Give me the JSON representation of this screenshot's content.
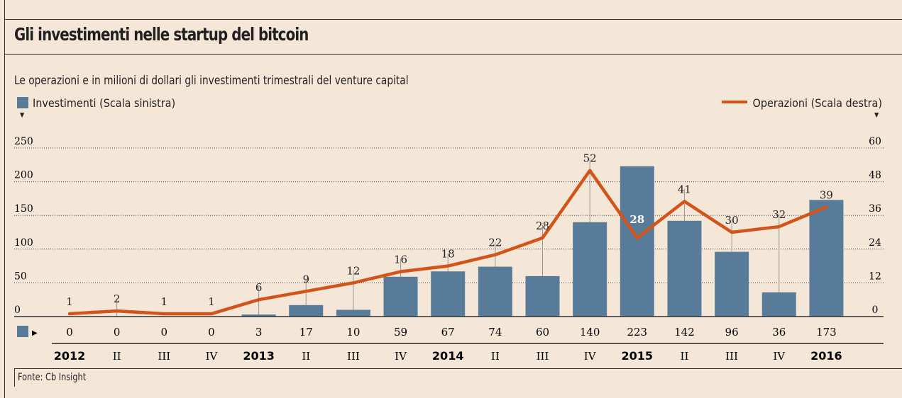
{
  "title": "Gli investimenti nelle startup del bitcoin",
  "subtitle": "Le operazioni e in milioni di dollari gli investimenti trimestrali del venture capital",
  "source": "Fonte: Cb Insight",
  "colors": {
    "bar": "#587b99",
    "line": "#d2541a",
    "background": "#f4e7d7"
  },
  "chart_data": {
    "type": "bar+line",
    "categories": [
      "2012",
      "II",
      "III",
      "IV",
      "2013",
      "II",
      "III",
      "IV",
      "2014",
      "II",
      "III",
      "IV",
      "2015",
      "II",
      "III",
      "IV",
      "2016"
    ],
    "bold_categories": [
      "2012",
      "2013",
      "2014",
      "2015",
      "2016"
    ],
    "series": [
      {
        "name": "Investimenti (Scala sinistra)",
        "type": "bar",
        "axis": "left",
        "values": [
          0,
          0,
          0,
          0,
          3,
          17,
          10,
          59,
          67,
          74,
          60,
          140,
          223,
          142,
          96,
          36,
          173
        ]
      },
      {
        "name": "Operazioni (Scala destra)",
        "type": "line",
        "axis": "right",
        "values": [
          1,
          2,
          1,
          1,
          6,
          9,
          12,
          16,
          18,
          22,
          28,
          52,
          28,
          41,
          30,
          32,
          39
        ]
      }
    ],
    "left_axis": {
      "range": [
        0,
        250
      ],
      "ticks": [
        "0",
        "50",
        "100",
        "150",
        "200",
        "250"
      ]
    },
    "right_axis": {
      "range": [
        0,
        60
      ],
      "ticks": [
        "0",
        "12",
        "24",
        "36",
        "48",
        "60"
      ]
    },
    "grid": "dotted horizontal",
    "legend": "top"
  }
}
